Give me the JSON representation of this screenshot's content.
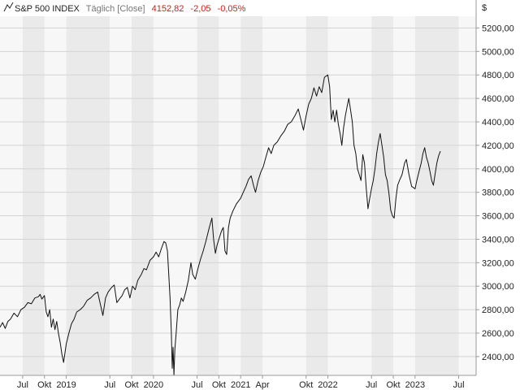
{
  "header": {
    "symbol": "S&P 500 INDEX",
    "interval": "Täglich [Close]",
    "last": "4152,82",
    "change": "-2,05",
    "change_pct": "-0,05%"
  },
  "colors": {
    "band_dark": "#eaeaea",
    "band_light": "#f7f7f7",
    "grid": "#d4d4d4",
    "line": "#111111",
    "negative": "#d0201b",
    "header_muted": "#777777"
  },
  "chart_data": {
    "type": "line",
    "currency_label": "$",
    "y_ticks": [
      "2400,00",
      "2600,00",
      "2800,00",
      "3000,00",
      "3200,00",
      "3400,00",
      "3600,00",
      "3800,00",
      "4000,00",
      "4200,00",
      "4400,00",
      "4600,00",
      "4800,00",
      "5000,00",
      "5200,00"
    ],
    "ylim": [
      2240,
      5300
    ],
    "x_ticks": [
      {
        "label": "Jul",
        "x": 2018.5
      },
      {
        "label": "Okt",
        "x": 2018.75
      },
      {
        "label": "2019",
        "x": 2019.0
      },
      {
        "label": "Jul",
        "x": 2019.5
      },
      {
        "label": "Okt",
        "x": 2019.75
      },
      {
        "label": "2020",
        "x": 2020.0
      },
      {
        "label": "Jul",
        "x": 2020.5
      },
      {
        "label": "Okt",
        "x": 2020.75
      },
      {
        "label": "2021",
        "x": 2021.0
      },
      {
        "label": "Apr",
        "x": 2021.25
      },
      {
        "label": "Okt",
        "x": 2021.75
      },
      {
        "label": "2022",
        "x": 2022.0
      },
      {
        "label": "Jul",
        "x": 2022.5
      },
      {
        "label": "Okt",
        "x": 2022.75
      },
      {
        "label": "2023",
        "x": 2023.0
      },
      {
        "label": "Jul",
        "x": 2023.5
      }
    ],
    "xlim": [
      2018.24,
      2023.7
    ],
    "series": [
      {
        "points": [
          [
            2018.24,
            2650
          ],
          [
            2018.27,
            2690
          ],
          [
            2018.3,
            2640
          ],
          [
            2018.33,
            2700
          ],
          [
            2018.36,
            2720
          ],
          [
            2018.4,
            2770
          ],
          [
            2018.44,
            2740
          ],
          [
            2018.48,
            2800
          ],
          [
            2018.52,
            2820
          ],
          [
            2018.56,
            2860
          ],
          [
            2018.6,
            2850
          ],
          [
            2018.64,
            2900
          ],
          [
            2018.68,
            2910
          ],
          [
            2018.7,
            2930
          ],
          [
            2018.72,
            2890
          ],
          [
            2018.75,
            2920
          ],
          [
            2018.77,
            2780
          ],
          [
            2018.79,
            2740
          ],
          [
            2018.81,
            2800
          ],
          [
            2018.83,
            2650
          ],
          [
            2018.85,
            2720
          ],
          [
            2018.87,
            2630
          ],
          [
            2018.89,
            2700
          ],
          [
            2018.91,
            2600
          ],
          [
            2018.93,
            2520
          ],
          [
            2018.95,
            2420
          ],
          [
            2018.97,
            2350
          ],
          [
            2019.0,
            2510
          ],
          [
            2019.03,
            2600
          ],
          [
            2019.06,
            2680
          ],
          [
            2019.09,
            2720
          ],
          [
            2019.12,
            2780
          ],
          [
            2019.16,
            2800
          ],
          [
            2019.2,
            2830
          ],
          [
            2019.24,
            2880
          ],
          [
            2019.28,
            2900
          ],
          [
            2019.32,
            2930
          ],
          [
            2019.36,
            2950
          ],
          [
            2019.39,
            2850
          ],
          [
            2019.42,
            2750
          ],
          [
            2019.45,
            2900
          ],
          [
            2019.48,
            2950
          ],
          [
            2019.52,
            2990
          ],
          [
            2019.55,
            3010
          ],
          [
            2019.58,
            2860
          ],
          [
            2019.61,
            2890
          ],
          [
            2019.64,
            2920
          ],
          [
            2019.67,
            2970
          ],
          [
            2019.7,
            2990
          ],
          [
            2019.73,
            2900
          ],
          [
            2019.76,
            3000
          ],
          [
            2019.79,
            2970
          ],
          [
            2019.82,
            3050
          ],
          [
            2019.86,
            3100
          ],
          [
            2019.89,
            3150
          ],
          [
            2019.92,
            3140
          ],
          [
            2019.96,
            3220
          ],
          [
            2020.0,
            3250
          ],
          [
            2020.03,
            3290
          ],
          [
            2020.06,
            3250
          ],
          [
            2020.09,
            3320
          ],
          [
            2020.12,
            3380
          ],
          [
            2020.14,
            3370
          ],
          [
            2020.16,
            3300
          ],
          [
            2020.175,
            3100
          ],
          [
            2020.19,
            2900
          ],
          [
            2020.205,
            2600
          ],
          [
            2020.215,
            2300
          ],
          [
            2020.225,
            2480
          ],
          [
            2020.235,
            2240
          ],
          [
            2020.245,
            2460
          ],
          [
            2020.26,
            2600
          ],
          [
            2020.28,
            2800
          ],
          [
            2020.3,
            2840
          ],
          [
            2020.32,
            2900
          ],
          [
            2020.34,
            2870
          ],
          [
            2020.37,
            2950
          ],
          [
            2020.4,
            3050
          ],
          [
            2020.43,
            3200
          ],
          [
            2020.45,
            3100
          ],
          [
            2020.48,
            3060
          ],
          [
            2020.51,
            3150
          ],
          [
            2020.54,
            3230
          ],
          [
            2020.57,
            3300
          ],
          [
            2020.6,
            3380
          ],
          [
            2020.64,
            3500
          ],
          [
            2020.67,
            3580
          ],
          [
            2020.69,
            3400
          ],
          [
            2020.71,
            3280
          ],
          [
            2020.73,
            3350
          ],
          [
            2020.75,
            3400
          ],
          [
            2020.78,
            3470
          ],
          [
            2020.8,
            3500
          ],
          [
            2020.82,
            3300
          ],
          [
            2020.84,
            3270
          ],
          [
            2020.86,
            3500
          ],
          [
            2020.88,
            3580
          ],
          [
            2020.91,
            3640
          ],
          [
            2020.95,
            3700
          ],
          [
            2021.0,
            3750
          ],
          [
            2021.03,
            3800
          ],
          [
            2021.06,
            3850
          ],
          [
            2021.09,
            3910
          ],
          [
            2021.12,
            3940
          ],
          [
            2021.15,
            3850
          ],
          [
            2021.17,
            3800
          ],
          [
            2021.2,
            3900
          ],
          [
            2021.23,
            3970
          ],
          [
            2021.26,
            4020
          ],
          [
            2021.29,
            4100
          ],
          [
            2021.32,
            4180
          ],
          [
            2021.35,
            4130
          ],
          [
            2021.38,
            4200
          ],
          [
            2021.42,
            4230
          ],
          [
            2021.46,
            4280
          ],
          [
            2021.5,
            4320
          ],
          [
            2021.54,
            4380
          ],
          [
            2021.58,
            4400
          ],
          [
            2021.62,
            4450
          ],
          [
            2021.66,
            4510
          ],
          [
            2021.69,
            4420
          ],
          [
            2021.72,
            4330
          ],
          [
            2021.75,
            4450
          ],
          [
            2021.78,
            4550
          ],
          [
            2021.81,
            4600
          ],
          [
            2021.84,
            4690
          ],
          [
            2021.87,
            4620
          ],
          [
            2021.9,
            4700
          ],
          [
            2021.93,
            4650
          ],
          [
            2021.96,
            4780
          ],
          [
            2022.0,
            4800
          ],
          [
            2022.02,
            4700
          ],
          [
            2022.04,
            4420
          ],
          [
            2022.06,
            4500
          ],
          [
            2022.08,
            4400
          ],
          [
            2022.1,
            4500
          ],
          [
            2022.12,
            4380
          ],
          [
            2022.14,
            4300
          ],
          [
            2022.16,
            4200
          ],
          [
            2022.18,
            4350
          ],
          [
            2022.2,
            4450
          ],
          [
            2022.22,
            4530
          ],
          [
            2022.24,
            4600
          ],
          [
            2022.26,
            4500
          ],
          [
            2022.28,
            4400
          ],
          [
            2022.3,
            4200
          ],
          [
            2022.32,
            4130
          ],
          [
            2022.34,
            4000
          ],
          [
            2022.36,
            3950
          ],
          [
            2022.38,
            3900
          ],
          [
            2022.4,
            4120
          ],
          [
            2022.42,
            4050
          ],
          [
            2022.44,
            3830
          ],
          [
            2022.46,
            3660
          ],
          [
            2022.48,
            3750
          ],
          [
            2022.5,
            3830
          ],
          [
            2022.52,
            3900
          ],
          [
            2022.54,
            4000
          ],
          [
            2022.56,
            4130
          ],
          [
            2022.58,
            4230
          ],
          [
            2022.6,
            4300
          ],
          [
            2022.62,
            4200
          ],
          [
            2022.64,
            4100
          ],
          [
            2022.66,
            3950
          ],
          [
            2022.68,
            3900
          ],
          [
            2022.7,
            3790
          ],
          [
            2022.72,
            3650
          ],
          [
            2022.74,
            3600
          ],
          [
            2022.76,
            3580
          ],
          [
            2022.78,
            3750
          ],
          [
            2022.8,
            3860
          ],
          [
            2022.82,
            3900
          ],
          [
            2022.85,
            3950
          ],
          [
            2022.88,
            4050
          ],
          [
            2022.9,
            4080
          ],
          [
            2022.93,
            3950
          ],
          [
            2022.96,
            3850
          ],
          [
            2023.0,
            3830
          ],
          [
            2023.02,
            3900
          ],
          [
            2023.05,
            3990
          ],
          [
            2023.07,
            4050
          ],
          [
            2023.09,
            4130
          ],
          [
            2023.11,
            4180
          ],
          [
            2023.13,
            4100
          ],
          [
            2023.15,
            4050
          ],
          [
            2023.17,
            3980
          ],
          [
            2023.19,
            3900
          ],
          [
            2023.21,
            3860
          ],
          [
            2023.23,
            3960
          ],
          [
            2023.25,
            4050
          ],
          [
            2023.27,
            4110
          ],
          [
            2023.29,
            4150
          ]
        ]
      }
    ],
    "grid": true,
    "y_axis_position": "right"
  }
}
